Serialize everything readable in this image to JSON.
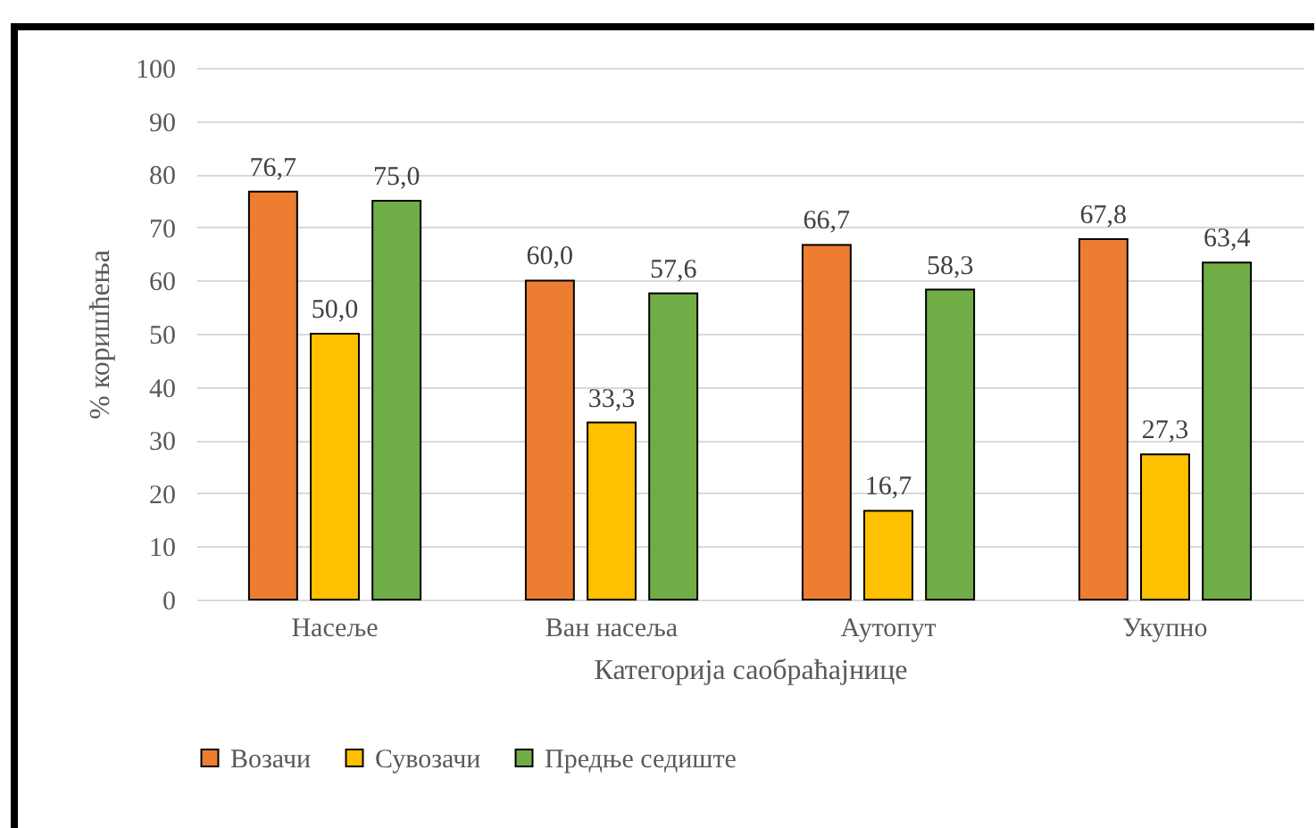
{
  "chart_data": {
    "type": "bar",
    "xlabel": "Категорија  саобраћајнице",
    "ylabel": "% коришћења",
    "categories": [
      "Насеље",
      "Ван насеља",
      "Аутопут",
      "Укупно"
    ],
    "series": [
      {
        "name": "Возачи",
        "color": "#ed7d31",
        "values": [
          76.7,
          60.0,
          66.7,
          67.8
        ],
        "value_labels": [
          "76,7",
          "60,0",
          "66,7",
          "67,8"
        ]
      },
      {
        "name": "Сувозачи",
        "color": "#ffc000",
        "values": [
          50.0,
          33.3,
          16.7,
          27.3
        ],
        "value_labels": [
          "50,0",
          "33,3",
          "16,7",
          "27,3"
        ]
      },
      {
        "name": "Предње седиште",
        "color": "#70ad47",
        "values": [
          75.0,
          57.6,
          58.3,
          63.4
        ],
        "value_labels": [
          "75,0",
          "57,6",
          "58,3",
          "63,4"
        ]
      }
    ],
    "ylim": [
      0,
      100
    ],
    "yticks": [
      0,
      10,
      20,
      30,
      40,
      50,
      60,
      70,
      80,
      90,
      100
    ],
    "grid": "y",
    "legend": "bottom"
  }
}
